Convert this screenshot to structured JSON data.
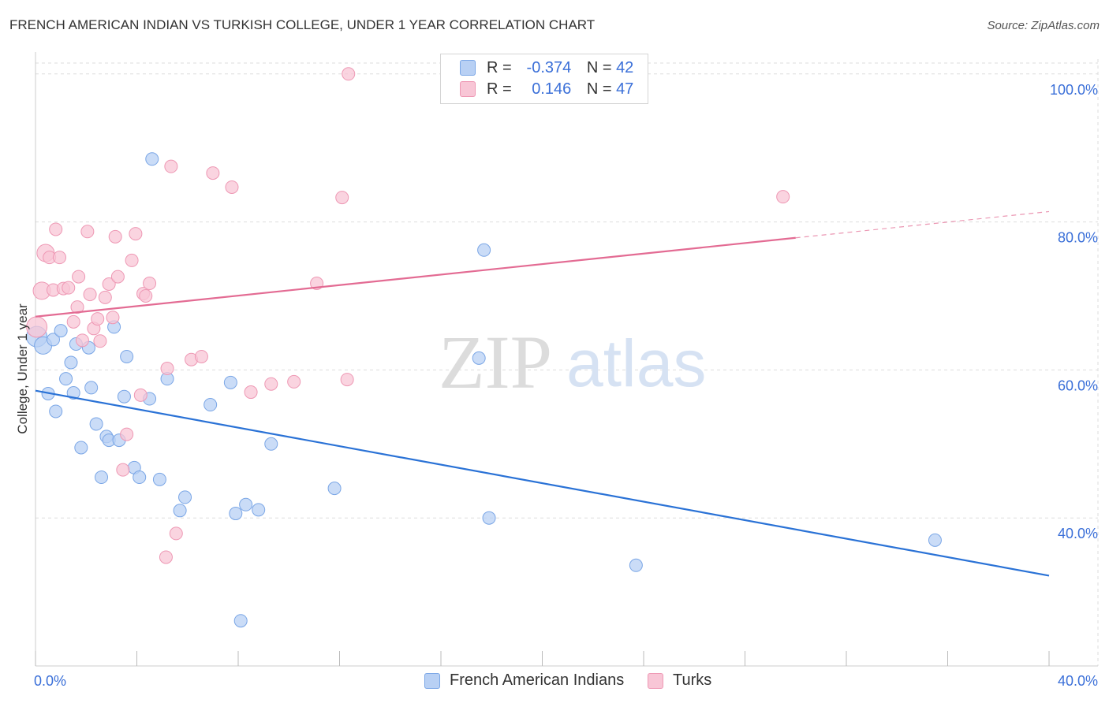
{
  "header": {
    "title": "FRENCH AMERICAN INDIAN VS TURKISH COLLEGE, UNDER 1 YEAR CORRELATION CHART",
    "source": "Source: ZipAtlas.com"
  },
  "legend": {
    "rows": [
      {
        "r_label": "R =",
        "r_value": "-0.374",
        "n_label": "N =",
        "n_value": "42"
      },
      {
        "r_label": "R =",
        "r_value": "0.146",
        "n_label": "N =",
        "n_value": "47"
      }
    ]
  },
  "watermark": {
    "zip": "ZIP",
    "atlas": "atlas"
  },
  "colors": {
    "blue_fill": "#b8d0f4",
    "blue_stroke": "#7aa6e6",
    "blue_line": "#2a72d6",
    "pink_fill": "#f8c6d6",
    "pink_stroke": "#ee98b4",
    "pink_line": "#e36b93",
    "tick_label": "#3a6fd8",
    "grid": "#dddddd"
  },
  "chart_data": {
    "type": "scatter",
    "title": "FRENCH AMERICAN INDIAN VS TURKISH COLLEGE, UNDER 1 YEAR CORRELATION CHART",
    "xlabel": "",
    "ylabel": "College, Under 1 year",
    "xlim": [
      0,
      40
    ],
    "ylim": [
      20,
      102
    ],
    "x_tick_labels": [
      {
        "value": 0,
        "label": "0.0%"
      },
      {
        "value": 40,
        "label": "40.0%"
      }
    ],
    "y_tick_labels": [
      {
        "value": 100,
        "label": "100.0%"
      },
      {
        "value": 80,
        "label": "80.0%"
      },
      {
        "value": 60,
        "label": "60.0%"
      },
      {
        "value": 40,
        "label": "40.0%"
      }
    ],
    "series": [
      {
        "name": "French American Indians",
        "color": "blue",
        "r": -0.374,
        "n": 42,
        "trend": {
          "x0": 0,
          "y0": 57.2,
          "x1": 40,
          "y1": 32.2,
          "dash_from_x": null
        },
        "points": [
          [
            0.05,
            64.5
          ],
          [
            0.3,
            63.3
          ],
          [
            0.5,
            56.8
          ],
          [
            0.7,
            64.1
          ],
          [
            0.8,
            54.4
          ],
          [
            1.0,
            65.3
          ],
          [
            1.2,
            58.8
          ],
          [
            1.4,
            61.0
          ],
          [
            1.5,
            56.9
          ],
          [
            1.6,
            63.5
          ],
          [
            1.8,
            49.5
          ],
          [
            2.1,
            63.0
          ],
          [
            2.2,
            57.6
          ],
          [
            2.4,
            52.7
          ],
          [
            2.6,
            45.5
          ],
          [
            2.8,
            51.0
          ],
          [
            2.9,
            50.5
          ],
          [
            3.1,
            65.8
          ],
          [
            3.3,
            50.5
          ],
          [
            3.5,
            56.4
          ],
          [
            3.6,
            61.8
          ],
          [
            3.9,
            46.8
          ],
          [
            4.1,
            45.5
          ],
          [
            4.5,
            56.1
          ],
          [
            4.6,
            88.5
          ],
          [
            4.9,
            45.2
          ],
          [
            5.2,
            58.8
          ],
          [
            5.7,
            41.0
          ],
          [
            5.9,
            42.8
          ],
          [
            6.9,
            55.3
          ],
          [
            7.7,
            58.3
          ],
          [
            7.9,
            40.6
          ],
          [
            8.1,
            26.1
          ],
          [
            8.3,
            41.8
          ],
          [
            8.8,
            41.1
          ],
          [
            9.3,
            50.0
          ],
          [
            11.8,
            44.0
          ],
          [
            17.5,
            61.6
          ],
          [
            17.7,
            76.2
          ],
          [
            17.9,
            40.0
          ],
          [
            23.7,
            33.6
          ],
          [
            35.5,
            37.0
          ]
        ]
      },
      {
        "name": "Turks",
        "color": "pink",
        "r": 0.146,
        "n": 47,
        "trend": {
          "x0": 0,
          "y0": 67.2,
          "x1": 40,
          "y1": 81.4,
          "dash_from_x": 30.0
        },
        "points": [
          [
            0.05,
            65.8
          ],
          [
            0.25,
            70.7
          ],
          [
            0.4,
            75.8
          ],
          [
            0.55,
            75.2
          ],
          [
            0.7,
            70.8
          ],
          [
            0.8,
            79.0
          ],
          [
            0.95,
            75.2
          ],
          [
            1.1,
            71.0
          ],
          [
            1.3,
            71.1
          ],
          [
            1.5,
            66.5
          ],
          [
            1.65,
            68.5
          ],
          [
            1.7,
            72.6
          ],
          [
            1.85,
            64.0
          ],
          [
            2.05,
            78.7
          ],
          [
            2.15,
            70.2
          ],
          [
            2.3,
            65.6
          ],
          [
            2.45,
            66.9
          ],
          [
            2.55,
            63.9
          ],
          [
            2.75,
            69.8
          ],
          [
            2.9,
            71.6
          ],
          [
            3.05,
            67.1
          ],
          [
            3.15,
            78.0
          ],
          [
            3.25,
            72.6
          ],
          [
            3.45,
            46.5
          ],
          [
            3.6,
            51.3
          ],
          [
            3.8,
            74.8
          ],
          [
            3.95,
            78.4
          ],
          [
            4.15,
            56.6
          ],
          [
            4.25,
            70.3
          ],
          [
            4.35,
            70.0
          ],
          [
            4.5,
            71.7
          ],
          [
            5.15,
            34.7
          ],
          [
            5.2,
            60.2
          ],
          [
            5.35,
            87.5
          ],
          [
            5.55,
            37.9
          ],
          [
            6.15,
            61.4
          ],
          [
            6.55,
            61.8
          ],
          [
            7.0,
            86.6
          ],
          [
            7.75,
            84.7
          ],
          [
            8.5,
            57.0
          ],
          [
            9.3,
            58.1
          ],
          [
            10.2,
            58.4
          ],
          [
            11.1,
            71.7
          ],
          [
            12.1,
            83.3
          ],
          [
            12.3,
            58.7
          ],
          [
            12.35,
            100.0
          ],
          [
            29.5,
            83.4
          ]
        ]
      }
    ]
  },
  "bottom_legend": [
    {
      "label": "French American Indians",
      "color": "blue"
    },
    {
      "label": "Turks",
      "color": "pink"
    }
  ]
}
